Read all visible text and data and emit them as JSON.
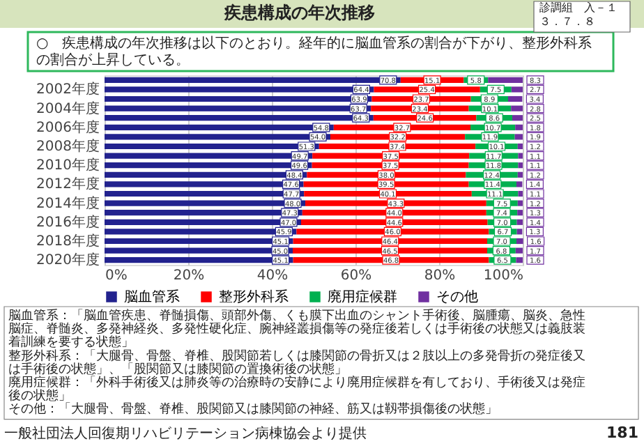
{
  "chart_data": {
    "type": "bar",
    "orientation": "horizontal",
    "stacked": true,
    "title": "疾患構成の年次推移",
    "subtitle": "○　疾患構成の年次推移は以下のとおり。経年的に脳血管系の割合が下がり、整形外科系の割合が上昇している。",
    "categories": [
      null,
      "2002年度",
      null,
      "2004年度",
      null,
      "2006年度",
      null,
      "2008年度",
      null,
      "2010年度",
      null,
      "2012年度",
      null,
      "2014年度",
      null,
      "2016年度",
      null,
      "2018年度",
      null,
      "2020年度"
    ],
    "series": [
      {
        "name": "脳血管系",
        "color": "#22228e",
        "values": [
          70.8,
          64.4,
          63.9,
          63.7,
          64.3,
          54.8,
          54.0,
          51.3,
          49.7,
          49.6,
          48.4,
          47.6,
          47.7,
          48.0,
          47.3,
          47.0,
          45.9,
          45.1,
          45.0,
          45.1
        ],
        "value_labels": [
          "70.8",
          "64.4",
          "63.9",
          "63.7",
          "64.3",
          "54.8",
          "54.0",
          "51.3",
          "49.7",
          "49.6",
          "48.4",
          "47.6",
          "47.7",
          "48.0",
          "47.3",
          "47.0",
          "45.9",
          "45.1",
          "45.0",
          "45.1"
        ]
      },
      {
        "name": "整形外科系",
        "color": "#ff0000",
        "values": [
          15.1,
          25.4,
          23.7,
          23.4,
          24.6,
          32.7,
          32.2,
          37.4,
          37.5,
          37.5,
          38.0,
          39.5,
          40.1,
          43.3,
          44.0,
          44.6,
          46.0,
          46.4,
          46.5,
          46.8
        ],
        "value_labels": [
          "15.1",
          "25.4",
          "23.7",
          "23.4",
          "24.6",
          "32.7",
          "32.2",
          "37.4",
          "37.5",
          "37.5",
          "38.0",
          "39.5",
          "40.1",
          "43.3",
          "44.0",
          "44.6",
          "46.0",
          "46.4",
          "46.5",
          "46.8"
        ]
      },
      {
        "name": "廃用症候群",
        "color": "#00b050",
        "values": [
          5.8,
          7.5,
          8.9,
          10.1,
          8.6,
          10.7,
          11.9,
          10.1,
          11.7,
          11.8,
          12.4,
          11.4,
          11.1,
          7.5,
          7.4,
          7.0,
          6.7,
          7.0,
          6.8,
          6.5
        ],
        "value_labels": [
          "5.8",
          "7.5",
          "8.9",
          "10.1",
          "8.6",
          "10.7",
          "11.9",
          "10.1",
          "11.7",
          "11.8",
          "12.4",
          "11.4",
          "11.1",
          "7.5",
          "7.4",
          "7.0",
          "6.7",
          "7.0",
          "6.8",
          "6.5"
        ]
      },
      {
        "name": "その他",
        "color": "#7030a0",
        "values": [
          8.3,
          2.7,
          3.4,
          2.8,
          2.5,
          1.8,
          1.9,
          1.2,
          1.1,
          1.1,
          1.2,
          1.4,
          1.1,
          1.2,
          1.3,
          1.4,
          1.3,
          1.6,
          1.7,
          1.6
        ],
        "value_labels": [
          "8.3",
          "2.7",
          "3.4",
          "2.8",
          "2.5",
          "1.8",
          "1.9",
          "1.2",
          "1.1",
          "1.1",
          "1.2",
          "1.4",
          "1.1",
          "1.2",
          "1.3",
          "1.4",
          "1.3",
          "1.6",
          "1.7",
          "1.6"
        ]
      }
    ],
    "xlim": [
      0,
      100
    ],
    "xticks": [
      {
        "value": 0,
        "label": "0%"
      },
      {
        "value": 20,
        "label": "20%"
      },
      {
        "value": 40,
        "label": "40%"
      },
      {
        "value": 60,
        "label": "60%"
      },
      {
        "value": 80,
        "label": "80%"
      },
      {
        "value": 100,
        "label": "100%"
      }
    ],
    "grid": "x",
    "legend": "bottom",
    "annotations": [
      "診調組　入－１",
      "３．７．８",
      "脳血管系：「脳血管疾患、脊髄損傷、頭部外傷、くも膜下出血のシャント手術後、脳腫瘍、脳炎、急性脳症、脊髄炎、多発神経炎、多発性硬化症、腕神経叢損傷等の発症後若しくは手術後の状態又は義肢装着訓練を要する状態」",
      "整形外科系：「大腿骨、骨盤、脊椎、股関節若しくは膝関節の骨折又は２肢以上の多発骨折の発症後又は手術後の状態」、「股関節又は膝関節の置換術後の状態」",
      "廃用症候群：「外科手術後又は肺炎等の治療時の安静により廃用症候群を有しており、手術後又は発症後の状態」",
      "その他：「大腿骨、骨盤、脊椎、股関節又は膝関節の神経、筋又は靱帯損傷後の状態」",
      "一般社団法人回復期リハビリテーション病棟協会より提供",
      "181"
    ]
  }
}
